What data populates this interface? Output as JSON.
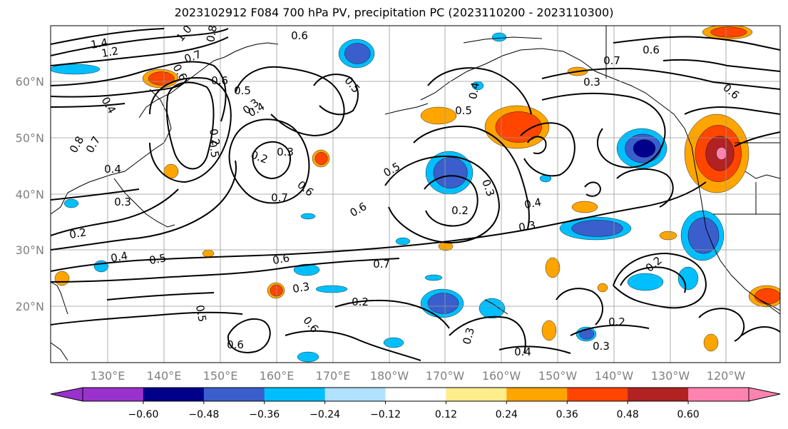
{
  "title": "2023102912 F084 700 hPa PV, precipitation PC (2023110200 - 2023110300)",
  "latitude_labels": [
    "60°N",
    "50°N",
    "40°N",
    "30°N",
    "20°N"
  ],
  "longitude_labels": [
    "130°E",
    "140°E",
    "150°E",
    "160°E",
    "170°E",
    "180°W",
    "170°W",
    "160°W",
    "150°W",
    "140°W",
    "130°W",
    "120°W"
  ],
  "colorbar": {
    "colors": [
      "#9932cc",
      "#00008b",
      "#3a5fcd",
      "#00bfff",
      "#b0e2ff",
      "#ffffff",
      "#ffec8b",
      "#ffa500",
      "#ff4500",
      "#b22222",
      "#ff83b0"
    ],
    "tick_labels": [
      "−0.60",
      "−0.48",
      "−0.36",
      "−0.24",
      "−0.12",
      "0.12",
      "0.24",
      "0.36",
      "0.48",
      "0.60"
    ]
  },
  "contour_labels": [
    "1.4",
    "1.2",
    "1.0",
    "0.8",
    "0.7",
    "0.6",
    "0.5",
    "0.4",
    "0.3",
    "0.2",
    "0.8",
    "0.7",
    "0.6",
    "0.5",
    "0.4",
    "0.3",
    "0.2",
    "0.6",
    "0.5",
    "0.4",
    "0.3",
    "0.2",
    "0.6",
    "0.7",
    "0.6",
    "0.5",
    "0.3",
    "0.2",
    "0.4",
    "0.3",
    "0.7",
    "0.6",
    "0.5",
    "0.4",
    "0.3",
    "0.2",
    "0.5",
    "0.6",
    "0.6",
    "0.3",
    "0.4",
    "0.2",
    "0.3",
    "0.2",
    "0.6",
    "0.7",
    "0.4",
    "0.5",
    "0.3",
    "0.6"
  ]
}
